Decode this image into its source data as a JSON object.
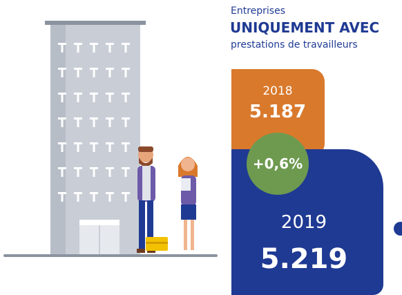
{
  "header": {
    "line1": "Entreprises",
    "line2": "UNIQUEMENT AVEC",
    "line3": "prestations de travailleurs"
  },
  "box_2018": {
    "year": "2018",
    "value": "5.187"
  },
  "change": "+0,6%",
  "box_2019": {
    "year": "2019",
    "value": "5.219"
  }
}
